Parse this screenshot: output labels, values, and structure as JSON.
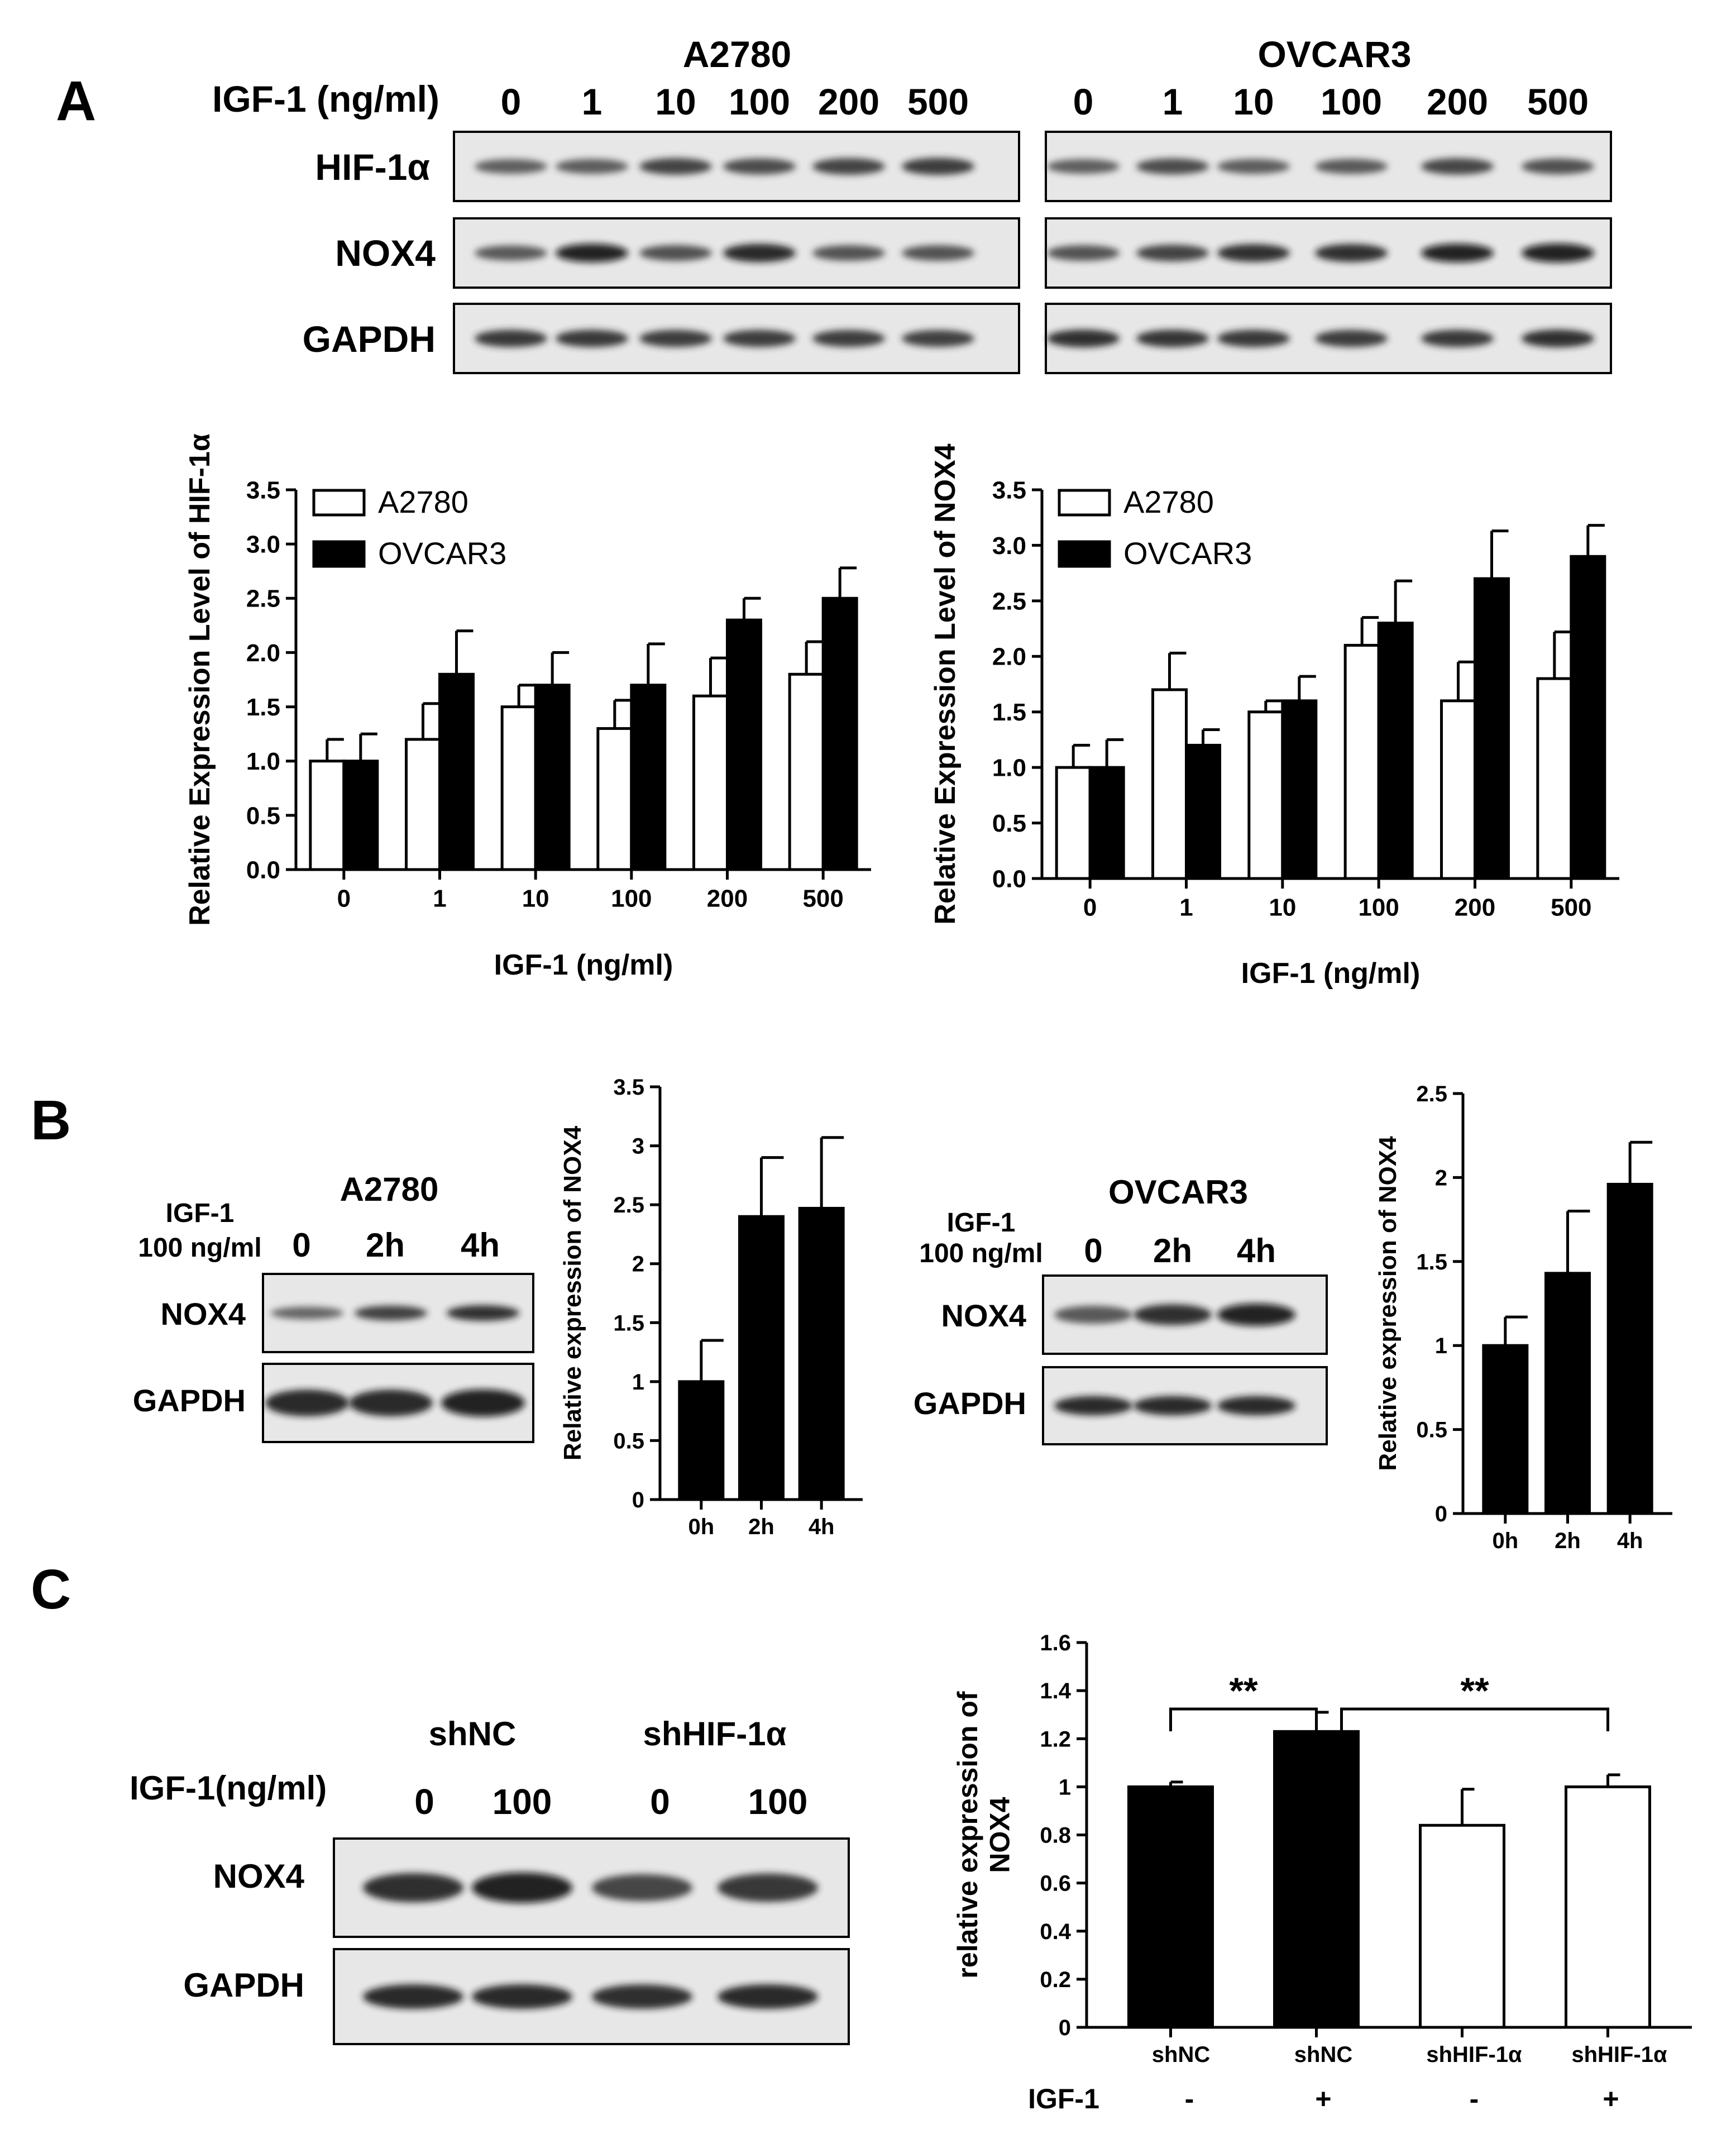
{
  "panels": {
    "A": "A",
    "B": "B",
    "C": "C"
  },
  "panel_a": {
    "blot_a2780": {
      "cell_line": "A2780",
      "treatment_label": "IGF-1 (ng/ml)",
      "lanes": [
        "0",
        "1",
        "10",
        "100",
        "200",
        "500"
      ],
      "rows": [
        "HIF-1α",
        "NOX4",
        "GAPDH"
      ],
      "intensities": [
        [
          0.5,
          0.52,
          0.72,
          0.66,
          0.72,
          0.78
        ],
        [
          0.55,
          0.95,
          0.62,
          0.92,
          0.6,
          0.6
        ],
        [
          0.8,
          0.8,
          0.78,
          0.78,
          0.76,
          0.74
        ]
      ]
    },
    "blot_ovcar3": {
      "cell_line": "OVCAR3",
      "lanes": [
        "0",
        "1",
        "10",
        "100",
        "200",
        "500"
      ],
      "rows": [
        "HIF-1α",
        "NOX4",
        "GAPDH"
      ],
      "intensities": [
        [
          0.5,
          0.65,
          0.52,
          0.55,
          0.7,
          0.62
        ],
        [
          0.6,
          0.72,
          0.85,
          0.88,
          0.95,
          1.0
        ],
        [
          0.85,
          0.82,
          0.8,
          0.78,
          0.8,
          0.85
        ]
      ]
    }
  },
  "panel_b": {
    "blot_a2780": {
      "cell_line": "A2780",
      "treatment_label_1": "IGF-1",
      "treatment_label_2": "100 ng/ml",
      "lanes": [
        "0",
        "2h",
        "4h"
      ],
      "rows": [
        "NOX4",
        "GAPDH"
      ],
      "intensities": [
        [
          0.45,
          0.75,
          0.85
        ],
        [
          0.9,
          0.9,
          0.95
        ]
      ]
    },
    "blot_ovcar3": {
      "cell_line": "OVCAR3",
      "treatment_label_1": "IGF-1",
      "treatment_label_2": "100 ng/ml",
      "lanes": [
        "0",
        "2h",
        "4h"
      ],
      "rows": [
        "NOX4",
        "GAPDH"
      ],
      "intensities": [
        [
          0.55,
          0.85,
          1.0
        ],
        [
          0.9,
          0.9,
          0.9
        ]
      ]
    }
  },
  "panel_c": {
    "blot": {
      "treatment_label": "IGF-1(ng/ml)",
      "groups": [
        "shNC",
        "shHIF-1α"
      ],
      "lanes": [
        "0",
        "100",
        "0",
        "100"
      ],
      "rows": [
        "NOX4",
        "GAPDH"
      ],
      "intensities": [
        [
          0.85,
          0.95,
          0.7,
          0.8
        ],
        [
          0.9,
          0.9,
          0.88,
          0.9
        ]
      ]
    },
    "group_row_label": "IGF-1",
    "igf_states": [
      "-",
      "+",
      "-",
      "+"
    ],
    "significance": [
      "**",
      "**"
    ]
  },
  "chart_data": [
    {
      "id": "A-left",
      "type": "bar",
      "categories": [
        "0",
        "1",
        "10",
        "100",
        "200",
        "500"
      ],
      "series": [
        {
          "name": "A2780",
          "color": "#ffffff",
          "values": [
            1.0,
            1.2,
            1.5,
            1.3,
            1.6,
            1.8
          ],
          "errors": [
            0.2,
            0.33,
            0.2,
            0.26,
            0.35,
            0.3
          ]
        },
        {
          "name": "OVCAR3",
          "color": "#000000",
          "values": [
            1.0,
            1.8,
            1.7,
            1.7,
            2.3,
            2.5
          ],
          "errors": [
            0.25,
            0.4,
            0.3,
            0.38,
            0.2,
            0.28
          ]
        }
      ],
      "xlabel": "IGF-1 (ng/ml)",
      "ylabel": "Relative Expression Level of HIF-1α",
      "ylim": [
        0,
        3.5
      ],
      "yticks": [
        "0.0",
        "0.5",
        "1.0",
        "1.5",
        "2.0",
        "2.5",
        "3.0",
        "3.5"
      ],
      "legend": "top-left",
      "grid": false
    },
    {
      "id": "A-right",
      "type": "bar",
      "categories": [
        "0",
        "1",
        "10",
        "100",
        "200",
        "500"
      ],
      "series": [
        {
          "name": "A2780",
          "color": "#ffffff",
          "values": [
            1.0,
            1.7,
            1.5,
            2.1,
            1.6,
            1.8
          ],
          "errors": [
            0.2,
            0.33,
            0.1,
            0.25,
            0.35,
            0.42
          ]
        },
        {
          "name": "OVCAR3",
          "color": "#000000",
          "values": [
            1.0,
            1.2,
            1.6,
            2.3,
            2.7,
            2.9
          ],
          "errors": [
            0.25,
            0.14,
            0.22,
            0.38,
            0.43,
            0.28
          ]
        }
      ],
      "xlabel": "IGF-1 (ng/ml)",
      "ylabel": "Relative Expression Level of NOX4",
      "ylim": [
        0,
        3.5
      ],
      "yticks": [
        "0.0",
        "0.5",
        "1.0",
        "1.5",
        "2.0",
        "2.5",
        "3.0",
        "3.5"
      ],
      "legend": "top-left",
      "grid": false
    },
    {
      "id": "B-left",
      "type": "bar",
      "categories": [
        "0h",
        "2h",
        "4h"
      ],
      "series": [
        {
          "color": "#000000",
          "values": [
            1.0,
            2.4,
            2.47
          ],
          "errors": [
            0.35,
            0.5,
            0.6
          ]
        }
      ],
      "ylabel": "Relative expression of NOX4",
      "ylim": [
        0,
        3.5
      ],
      "yticks": [
        "0",
        "0.5",
        "1",
        "1.5",
        "2",
        "2.5",
        "3",
        "3.5"
      ],
      "grid": false
    },
    {
      "id": "B-right",
      "type": "bar",
      "categories": [
        "0h",
        "2h",
        "4h"
      ],
      "series": [
        {
          "color": "#000000",
          "values": [
            1.0,
            1.43,
            1.96
          ],
          "errors": [
            0.17,
            0.37,
            0.25
          ]
        }
      ],
      "ylabel": "Relative expression of NOX4",
      "ylim": [
        0,
        2.5
      ],
      "yticks": [
        "0",
        "0.5",
        "1",
        "1.5",
        "2",
        "2.5"
      ],
      "grid": false
    },
    {
      "id": "C",
      "type": "bar",
      "categories": [
        "shNC",
        "shNC",
        "shHIF-1α",
        "shHIF-1α"
      ],
      "series": [
        {
          "values": [
            1.0,
            1.23,
            0.84,
            1.0
          ],
          "errors": [
            0.02,
            0.08,
            0.15,
            0.05
          ],
          "colors": [
            "#000000",
            "#000000",
            "#ffffff",
            "#ffffff"
          ]
        }
      ],
      "ylabel_line1": "relative expression of",
      "ylabel_line2": "NOX4",
      "ylim": [
        0,
        1.6
      ],
      "yticks": [
        "0",
        "0.2",
        "0.4",
        "0.6",
        "0.8",
        "1",
        "1.2",
        "1.4",
        "1.6"
      ],
      "annotations": [
        {
          "text": "**",
          "from": 0,
          "to": 1
        },
        {
          "text": "**",
          "from": 1,
          "to": 3
        }
      ],
      "grid": false
    }
  ]
}
